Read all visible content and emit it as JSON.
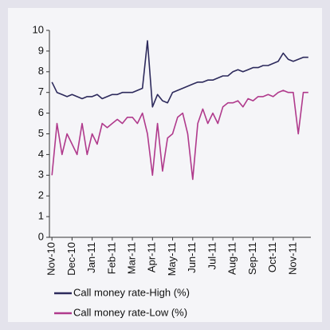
{
  "chart_data": {
    "type": "line",
    "categories": [
      "Nov-10",
      null,
      null,
      null,
      "Dec-10",
      null,
      null,
      null,
      "Jan-11",
      null,
      null,
      null,
      "Feb-11",
      null,
      null,
      null,
      "Mar-11",
      null,
      null,
      null,
      "Apr-11",
      null,
      null,
      null,
      "May-11",
      null,
      null,
      null,
      "Jun-11",
      null,
      null,
      null,
      "Jul-11",
      null,
      null,
      null,
      "Aug-11",
      null,
      null,
      null,
      "Sep-11",
      null,
      null,
      null,
      "Oct-11",
      null,
      null,
      null,
      "Nov-11",
      null,
      null,
      null
    ],
    "series": [
      {
        "name": "Call money rate-High (%)",
        "color": "#2d2a5c",
        "values": [
          7.5,
          7.0,
          6.9,
          6.8,
          6.9,
          6.8,
          6.7,
          6.8,
          6.8,
          6.9,
          6.7,
          6.8,
          6.9,
          6.9,
          7.0,
          7.0,
          7.0,
          7.1,
          7.2,
          9.5,
          6.3,
          6.9,
          6.6,
          6.5,
          7.0,
          7.1,
          7.2,
          7.3,
          7.4,
          7.5,
          7.5,
          7.6,
          7.6,
          7.7,
          7.8,
          7.8,
          8.0,
          8.1,
          8.0,
          8.1,
          8.2,
          8.2,
          8.3,
          8.3,
          8.4,
          8.5,
          8.9,
          8.6,
          8.5,
          8.6,
          8.7,
          8.7
        ]
      },
      {
        "name": "Call money rate-Low (%)",
        "color": "#b03a8c",
        "values": [
          3.0,
          5.5,
          4.0,
          5.0,
          4.5,
          4.0,
          5.5,
          4.0,
          5.0,
          4.5,
          5.5,
          5.3,
          5.5,
          5.7,
          5.5,
          5.8,
          5.8,
          5.5,
          6.0,
          5.0,
          3.0,
          5.5,
          3.2,
          4.8,
          5.0,
          5.8,
          6.0,
          5.0,
          2.8,
          5.5,
          6.2,
          5.5,
          6.0,
          5.5,
          6.3,
          6.5,
          6.5,
          6.6,
          6.3,
          6.7,
          6.6,
          6.8,
          6.8,
          6.9,
          6.8,
          7.0,
          7.1,
          7.0,
          7.0,
          5.0,
          7.0,
          7.0
        ]
      }
    ],
    "ylim": [
      0,
      10
    ],
    "yticks": [
      0,
      1,
      2,
      3,
      4,
      5,
      6,
      7,
      8,
      9,
      10
    ]
  }
}
